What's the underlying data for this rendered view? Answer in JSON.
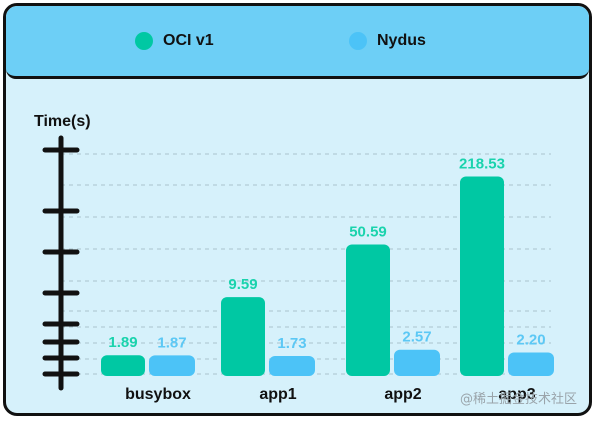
{
  "chart_data": {
    "type": "bar",
    "ylabel": "Time(s)",
    "categories": [
      "busybox",
      "app1",
      "app2",
      "app3"
    ],
    "series": [
      {
        "name": "OCI v1",
        "color": "#00c8a3",
        "values": [
          1.89,
          9.59,
          50.59,
          218.53
        ],
        "labels": [
          "1.89",
          "9.59",
          "50.59",
          "218.53"
        ]
      },
      {
        "name": "Nydus",
        "color": "#4cc3f7",
        "values": [
          1.87,
          1.73,
          2.57,
          2.2
        ],
        "labels": [
          "1.87",
          "1.73",
          "2.57",
          "2.20"
        ]
      }
    ],
    "legend_position": "top",
    "grid": true
  },
  "colors": {
    "background": "#d6f1fb",
    "legend_background": "#6dcff6",
    "oci_label": "#1ad3ad",
    "nydus_label": "#5cc8f5"
  },
  "watermark": "@稀土掘金技术社区"
}
